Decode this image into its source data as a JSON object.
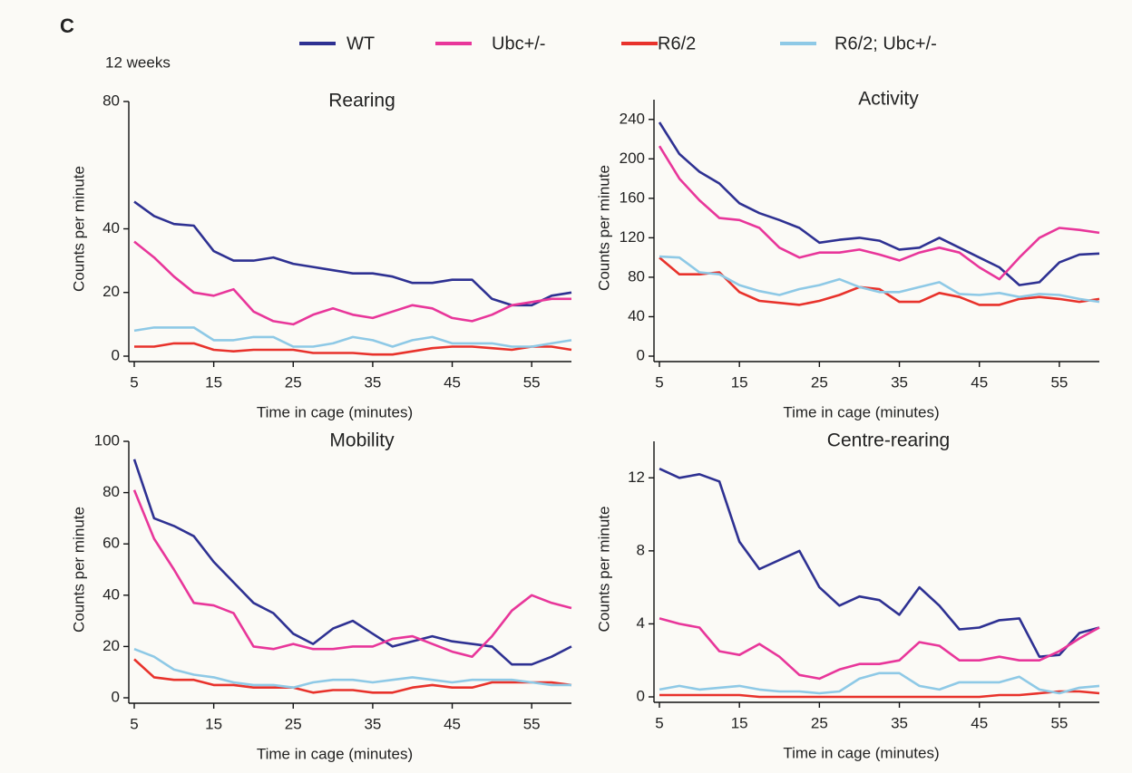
{
  "panel_label": "C",
  "subtitle": "12 weeks",
  "chart_data": [
    {
      "type": "line",
      "title": "Rearing",
      "xlabel": "Time in cage (minutes)",
      "ylabel": "Counts per minute",
      "x": [
        5,
        7.5,
        10,
        12.5,
        15,
        17.5,
        20,
        22.5,
        25,
        27.5,
        30,
        32.5,
        35,
        37.5,
        40,
        42.5,
        45,
        47.5,
        50,
        52.5,
        55,
        57.5,
        60
      ],
      "xlim": [
        5,
        60
      ],
      "xticks": [
        5,
        15,
        25,
        35,
        45,
        55
      ],
      "ylim": [
        0,
        80
      ],
      "yticks": [
        0,
        20,
        40,
        80
      ],
      "series": [
        {
          "name": "WT",
          "color": "#2e3192",
          "values": [
            48.5,
            44,
            41.5,
            41,
            33,
            30,
            30,
            31,
            29,
            28,
            27,
            26,
            26,
            25,
            23,
            23,
            24,
            24,
            18,
            16,
            16,
            19,
            20
          ]
        },
        {
          "name": "Ubc+/-",
          "color": "#e8369a",
          "values": [
            36,
            31,
            25,
            20,
            19,
            21,
            14,
            11,
            10,
            13,
            15,
            13,
            12,
            14,
            16,
            15,
            12,
            11,
            13,
            16,
            17,
            18,
            18
          ]
        },
        {
          "name": "R6/2",
          "color": "#e8322b",
          "values": [
            3,
            3,
            4,
            4,
            2,
            1.5,
            2,
            2,
            2,
            1,
            1,
            1,
            0.5,
            0.5,
            1.5,
            2.5,
            3,
            3,
            2.5,
            2,
            3,
            3,
            2
          ]
        },
        {
          "name": "R6/2; Ubc+/-",
          "color": "#8ec9e6",
          "values": [
            8,
            9,
            9,
            9,
            5,
            5,
            6,
            6,
            3,
            3,
            4,
            6,
            5,
            3,
            5,
            6,
            4,
            4,
            4,
            3,
            3,
            4,
            5
          ]
        }
      ]
    },
    {
      "type": "line",
      "title": "Activity",
      "xlabel": "Time in cage (minutes)",
      "ylabel": "Counts per minute",
      "x": [
        5,
        7.5,
        10,
        12.5,
        15,
        17.5,
        20,
        22.5,
        25,
        27.5,
        30,
        32.5,
        35,
        37.5,
        40,
        42.5,
        45,
        47.5,
        50,
        52.5,
        55,
        57.5,
        60
      ],
      "xlim": [
        5,
        60
      ],
      "xticks": [
        5,
        15,
        25,
        35,
        45,
        55
      ],
      "ylim": [
        0,
        260
      ],
      "yticks": [
        0,
        40,
        80,
        120,
        160,
        200,
        240
      ],
      "series": [
        {
          "color": "#2e3192",
          "values": [
            237,
            205,
            187,
            175,
            155,
            145,
            138,
            130,
            115,
            118,
            120,
            117,
            108,
            110,
            120,
            110,
            100,
            90,
            72,
            75,
            95,
            103,
            104
          ]
        },
        {
          "color": "#e8369a",
          "values": [
            213,
            180,
            158,
            140,
            138,
            130,
            110,
            100,
            105,
            105,
            108,
            103,
            97,
            105,
            110,
            105,
            90,
            78,
            100,
            120,
            130,
            128,
            125
          ]
        },
        {
          "color": "#e8322b",
          "values": [
            100,
            83,
            83,
            85,
            65,
            56,
            54,
            52,
            56,
            62,
            70,
            68,
            55,
            55,
            64,
            60,
            52,
            52,
            58,
            60,
            58,
            55,
            58
          ]
        },
        {
          "color": "#8ec9e6",
          "values": [
            101,
            100,
            85,
            83,
            72,
            66,
            62,
            68,
            72,
            78,
            70,
            65,
            65,
            70,
            75,
            63,
            62,
            64,
            60,
            63,
            62,
            58,
            55
          ]
        }
      ]
    },
    {
      "type": "line",
      "title": "Mobility",
      "xlabel": "Time in cage (minutes)",
      "ylabel": "Counts per minute",
      "x": [
        5,
        7.5,
        10,
        12.5,
        15,
        17.5,
        20,
        22.5,
        25,
        27.5,
        30,
        32.5,
        35,
        37.5,
        40,
        42.5,
        45,
        47.5,
        50,
        52.5,
        55,
        57.5,
        60
      ],
      "xlim": [
        5,
        60
      ],
      "xticks": [
        5,
        15,
        25,
        35,
        45,
        55
      ],
      "ylim": [
        0,
        100
      ],
      "yticks": [
        0,
        20,
        40,
        60,
        80,
        100
      ],
      "series": [
        {
          "color": "#2e3192",
          "values": [
            93,
            70,
            67,
            63,
            53,
            45,
            37,
            33,
            25,
            21,
            27,
            30,
            25,
            20,
            22,
            24,
            22,
            21,
            20,
            13,
            13,
            16,
            20
          ]
        },
        {
          "color": "#e8369a",
          "values": [
            81,
            62,
            50,
            37,
            36,
            33,
            20,
            19,
            21,
            19,
            19,
            20,
            20,
            23,
            24,
            21,
            18,
            16,
            24,
            34,
            40,
            37,
            35
          ]
        },
        {
          "color": "#e8322b",
          "values": [
            15,
            8,
            7,
            7,
            5,
            5,
            4,
            4,
            4,
            2,
            3,
            3,
            2,
            2,
            4,
            5,
            4,
            4,
            6,
            6,
            6,
            6,
            5
          ]
        },
        {
          "color": "#8ec9e6",
          "values": [
            19,
            16,
            11,
            9,
            8,
            6,
            5,
            5,
            4,
            6,
            7,
            7,
            6,
            7,
            8,
            7,
            6,
            7,
            7,
            7,
            6,
            5,
            5
          ]
        }
      ]
    },
    {
      "type": "line",
      "title": "Centre-rearing",
      "xlabel": "Time in cage (minutes)",
      "ylabel": "Counts per minute",
      "x": [
        5,
        7.5,
        10,
        12.5,
        15,
        17.5,
        20,
        22.5,
        25,
        27.5,
        30,
        32.5,
        35,
        37.5,
        40,
        42.5,
        45,
        47.5,
        50,
        52.5,
        55,
        57.5,
        60
      ],
      "xlim": [
        5,
        60
      ],
      "xticks": [
        5,
        15,
        25,
        35,
        45,
        55
      ],
      "ylim": [
        0,
        14
      ],
      "yticks": [
        0,
        4,
        8,
        12
      ],
      "series": [
        {
          "color": "#2e3192",
          "values": [
            12.5,
            12,
            12.2,
            11.8,
            8.5,
            7,
            7.5,
            8,
            6,
            5,
            5.5,
            5.3,
            4.5,
            6,
            5,
            3.7,
            3.8,
            4.2,
            4.3,
            2.2,
            2.3,
            3.5,
            3.8
          ]
        },
        {
          "color": "#e8369a",
          "values": [
            4.3,
            4,
            3.8,
            2.5,
            2.3,
            2.9,
            2.2,
            1.2,
            1,
            1.5,
            1.8,
            1.8,
            2,
            3,
            2.8,
            2,
            2,
            2.2,
            2,
            2,
            2.5,
            3.2,
            3.8
          ]
        },
        {
          "color": "#e8322b",
          "values": [
            0.1,
            0.1,
            0.1,
            0.1,
            0.1,
            0,
            0,
            0,
            0,
            0,
            0,
            0,
            0,
            0,
            0,
            0,
            0,
            0.1,
            0.1,
            0.2,
            0.3,
            0.3,
            0.2
          ]
        },
        {
          "color": "#8ec9e6",
          "values": [
            0.4,
            0.6,
            0.4,
            0.5,
            0.6,
            0.4,
            0.3,
            0.3,
            0.2,
            0.3,
            1,
            1.3,
            1.3,
            0.6,
            0.4,
            0.8,
            0.8,
            0.8,
            1.1,
            0.4,
            0.2,
            0.5,
            0.6
          ]
        }
      ]
    }
  ]
}
